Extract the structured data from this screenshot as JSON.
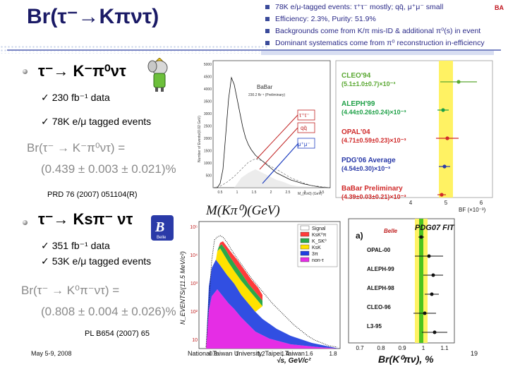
{
  "title": "Br(τ⁻→Kπντ)",
  "notes": [
    "78K e/μ-tagged events: τ⁺τ⁻ mostly; qq̄, μ⁺μ⁻ small",
    "Efficiency: 2.3%, Purity: 51.9%",
    "Backgrounds come from K/π mis-ID & additional π⁰(s) in event",
    "Dominant systematics come from π⁰ reconstruction in-efficiency"
  ],
  "section1": {
    "heading": "τ⁻→ K⁻π⁰ντ",
    "items": [
      "230 fb⁻¹ data",
      "78K e/μ tagged events"
    ],
    "formula_line1": "Br(τ⁻ → K⁻π⁰ντ) =",
    "formula_line2": "(0.439 ± 0.003 ± 0.021)%",
    "reference": "PRD 76 (2007) 051104(R)"
  },
  "section2": {
    "heading": "τ⁻→ Ksπ⁻ ντ",
    "items": [
      "351 fb⁻¹ data",
      "53K e/μ tagged events"
    ],
    "formula_line1": "Br(τ⁻ → K⁰π⁻ντ) =",
    "formula_line2": "(0.808 ± 0.004 ± 0.026)%",
    "reference": "PL B654 (2007) 65"
  },
  "plot1": {
    "babar_label": "BaBar",
    "prelim_label": "230.2 fb⁻¹ (Preliminary)",
    "ylabel": "Number of Events/(0.02 GeV)",
    "xlabel": "M(Kπ⁰)(GeV)",
    "xlabel_small": "M_{Kπ0} (GeV)",
    "legend": [
      "τ⁺τ⁻",
      "qq̄",
      "μ⁺μ⁻"
    ],
    "y_ticks": [
      "500",
      "1000",
      "1500",
      "2000",
      "2500",
      "3000",
      "3500",
      "4000",
      "4500",
      "5000"
    ],
    "x_ticks": [
      "0.5",
      "1",
      "1.5",
      "2",
      "2.5",
      "3",
      "3.5"
    ]
  },
  "compare1": {
    "entries": [
      {
        "name": "CLEO'94",
        "value": "(5.1±1.0±0.7)×10⁻³",
        "color": "#5aa832"
      },
      {
        "name": "ALEPH'99",
        "value": "(4.44±0.26±0.24)×10⁻³",
        "color": "#1ea047"
      },
      {
        "name": "OPAL'04",
        "value": "(4.71±0.59±0.23)×10⁻³",
        "color": "#d02a2a"
      },
      {
        "name": "PDG'06 Average",
        "value": "(4.54±0.30)×10⁻³",
        "color": "#2a3aa8"
      },
      {
        "name": "BaBar Preliminary",
        "value": "(4.39±0.03±0.21)×10⁻³",
        "color": "#d02a2a"
      }
    ],
    "x_ticks": [
      "4",
      "5",
      "6"
    ],
    "xlabel": "BF (×10⁻³)"
  },
  "plot2": {
    "ylabel": "N_EVENTS/(11.5 MeV/c²)",
    "xlabel": "√s, GeV/c²",
    "legend": [
      "Signal",
      "KsK⁰π",
      "K_SK⁰",
      "KsK",
      "3π",
      "non-τ"
    ],
    "legend_colors": [
      "#ffffff",
      "#ff3b3b",
      "#2aa84a",
      "#ffe100",
      "#2040e0",
      "#e52de5"
    ],
    "y_ticks": [
      "10⁵",
      "10⁴",
      "10³",
      "10²",
      "10"
    ],
    "x_ticks": [
      "0.8",
      "1",
      "1.2",
      "1.4",
      "1.6",
      "1.8"
    ],
    "belle_logo": "Belle"
  },
  "compare2": {
    "title": "PDG07 FIT",
    "label_a": "a)",
    "entries": [
      "Belle",
      "OPAL-00",
      "ALEPH-99",
      "ALEPH-98",
      "CLEO-96",
      "L3-95"
    ],
    "x_ticks": [
      "0.7",
      "0.8",
      "0.9",
      "1",
      "1.1"
    ],
    "xlabel": "Br(K⁰πν), %"
  },
  "footer": {
    "date": "May 5-9,  2008",
    "venue": "National Taiwan University, Taipei, Taiwan",
    "page": "19"
  }
}
